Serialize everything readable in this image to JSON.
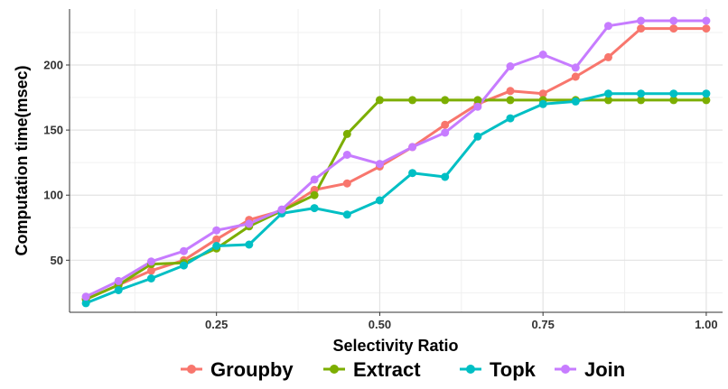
{
  "chart_data": {
    "type": "line",
    "xlabel": "Selectivity Ratio",
    "ylabel": "Computation time(msec)",
    "xlim": [
      0.025,
      1.025
    ],
    "ylim": [
      10,
      243
    ],
    "x_ticks": [
      0.25,
      0.5,
      0.75,
      1.0
    ],
    "x_tick_labels": [
      "0.25",
      "0.50",
      "0.75",
      "1.00"
    ],
    "y_ticks": [
      50,
      100,
      150,
      200
    ],
    "y_tick_labels": [
      "50",
      "100",
      "150",
      "200"
    ],
    "grid": true,
    "legend_position": "bottom",
    "x": [
      0.05,
      0.1,
      0.15,
      0.2,
      0.25,
      0.3,
      0.35,
      0.4,
      0.45,
      0.5,
      0.55,
      0.6,
      0.65,
      0.7,
      0.75,
      0.8,
      0.85,
      0.9,
      0.95,
      1.0
    ],
    "series": [
      {
        "name": "Groupby",
        "color": "#F8766D",
        "values": [
          20,
          31,
          42,
          50,
          66,
          81,
          88,
          104,
          109,
          122,
          137,
          154,
          170,
          180,
          178,
          191,
          206,
          228,
          228,
          228
        ]
      },
      {
        "name": "Extract",
        "color": "#7CAE00",
        "values": [
          20,
          31,
          47,
          48,
          59,
          76,
          88,
          100,
          147,
          173,
          173,
          173,
          173,
          173,
          173,
          173,
          173,
          173,
          173,
          173
        ]
      },
      {
        "name": "Topk",
        "color": "#00BFC4",
        "values": [
          17,
          27,
          36,
          46,
          61,
          62,
          86,
          90,
          85,
          96,
          117,
          114,
          145,
          159,
          170,
          172,
          178,
          178,
          178,
          178
        ]
      },
      {
        "name": "Join",
        "color": "#C77CFF",
        "values": [
          22,
          34,
          49,
          57,
          73,
          78,
          89,
          112,
          131,
          124,
          137,
          148,
          168,
          199,
          208,
          198,
          230,
          234,
          234,
          234
        ]
      }
    ]
  }
}
